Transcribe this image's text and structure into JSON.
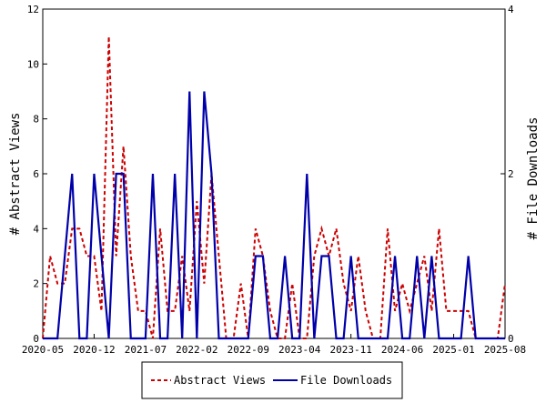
{
  "chart_data": {
    "type": "line",
    "y_left": {
      "label": "# Abstract Views",
      "ylim": [
        0,
        12
      ],
      "ticks": [
        "0",
        "2",
        "4",
        "6",
        "8",
        "10",
        "12"
      ]
    },
    "y_right": {
      "label": "# File Downloads",
      "ylim": [
        0,
        4
      ],
      "ticks": [
        "0",
        "2",
        "4"
      ]
    },
    "x": {
      "ticks": [
        "2020-05",
        "2020-12",
        "2021-07",
        "2022-02",
        "2022-09",
        "2023-04",
        "2023-11",
        "2024-06",
        "2025-01",
        "2025-08"
      ],
      "points": 64
    },
    "series": [
      {
        "name": "Abstract Views",
        "axis": "left",
        "color": "#cc0000",
        "style": "dashed",
        "values": [
          0,
          3,
          2,
          2,
          4,
          4,
          3,
          3,
          1,
          11,
          3,
          7,
          3,
          1,
          1,
          0,
          4,
          1,
          1,
          3,
          1,
          5,
          2,
          6,
          3,
          0,
          0,
          2,
          0,
          4,
          3,
          1,
          0,
          0,
          2,
          0,
          0,
          3,
          4,
          3,
          4,
          2,
          1,
          3,
          1,
          0,
          0,
          4,
          1,
          2,
          1,
          2,
          3,
          1,
          4,
          1,
          1,
          1,
          1,
          0,
          0,
          0,
          0,
          2
        ]
      },
      {
        "name": "File Downloads",
        "axis": "right",
        "color": "#0000aa",
        "style": "solid",
        "values": [
          0,
          0,
          0,
          1,
          2,
          0,
          0,
          2,
          1,
          0,
          2,
          2,
          0,
          0,
          0,
          2,
          0,
          0,
          2,
          0,
          3,
          0,
          3,
          2,
          0,
          0,
          0,
          0,
          0,
          1,
          1,
          0,
          0,
          1,
          0,
          0,
          2,
          0,
          1,
          1,
          0,
          0,
          1,
          0,
          0,
          0,
          0,
          0,
          1,
          0,
          0,
          1,
          0,
          1,
          0,
          0,
          0,
          0,
          1,
          0,
          0,
          0,
          0,
          0
        ]
      }
    ],
    "legend": {
      "position": "bottom",
      "items": [
        "Abstract Views",
        "File Downloads"
      ]
    },
    "grid": false
  }
}
